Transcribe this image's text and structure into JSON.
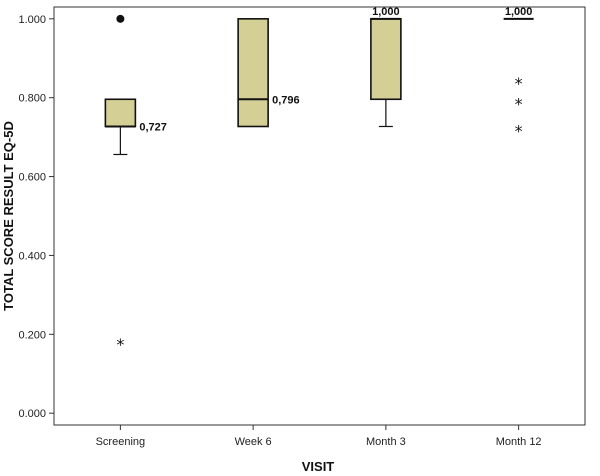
{
  "chart_data": {
    "type": "boxplot",
    "xlabel": "VISIT",
    "ylabel": "TOTAL SCORE RESULT EQ-5D",
    "ylim": [
      -0.03,
      1.03
    ],
    "yticks": [
      "0.000",
      "0.200",
      "0.400",
      "0.600",
      "0.800",
      "1.000"
    ],
    "yticks_values": [
      0,
      0.2,
      0.4,
      0.6,
      0.8,
      1.0
    ],
    "categories": [
      "Screening",
      "Week 6",
      "Month 3",
      "Month 12"
    ],
    "box_fill": "#d4cf95",
    "boxes": [
      {
        "q1": 0.727,
        "median": 0.727,
        "q3": 0.796,
        "whisker_low": 0.656,
        "whisker_high": 0.796,
        "median_label": "0,727",
        "label_position": "right",
        "outliers": [
          1.0
        ],
        "extremes": [
          0.186
        ]
      },
      {
        "q1": 0.727,
        "median": 0.796,
        "q3": 1.0,
        "whisker_low": 0.727,
        "whisker_high": 1.0,
        "median_label": "0,796",
        "label_position": "right",
        "outliers": [],
        "extremes": []
      },
      {
        "q1": 0.796,
        "median": 1.0,
        "q3": 1.0,
        "whisker_low": 0.727,
        "whisker_high": 1.0,
        "median_label": "1,000",
        "label_position": "top",
        "outliers": [],
        "extremes": []
      },
      {
        "q1": 1.0,
        "median": 1.0,
        "q3": 1.0,
        "whisker_low": 1.0,
        "whisker_high": 1.0,
        "median_label": "1,000",
        "label_position": "top",
        "outliers": [],
        "extremes": [
          0.848,
          0.796,
          0.727
        ]
      }
    ]
  }
}
